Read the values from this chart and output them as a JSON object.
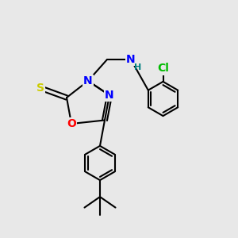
{
  "bg_color": "#e8e8e8",
  "bond_color": "#000000",
  "bond_lw": 1.5,
  "atom_colors": {
    "S": "#cccc00",
    "O": "#ff0000",
    "N": "#0000ff",
    "Cl": "#00bb00",
    "NH": "#008080",
    "C": "#000000"
  },
  "font_size": 9,
  "fig_size": [
    3.0,
    3.0
  ],
  "dpi": 100
}
